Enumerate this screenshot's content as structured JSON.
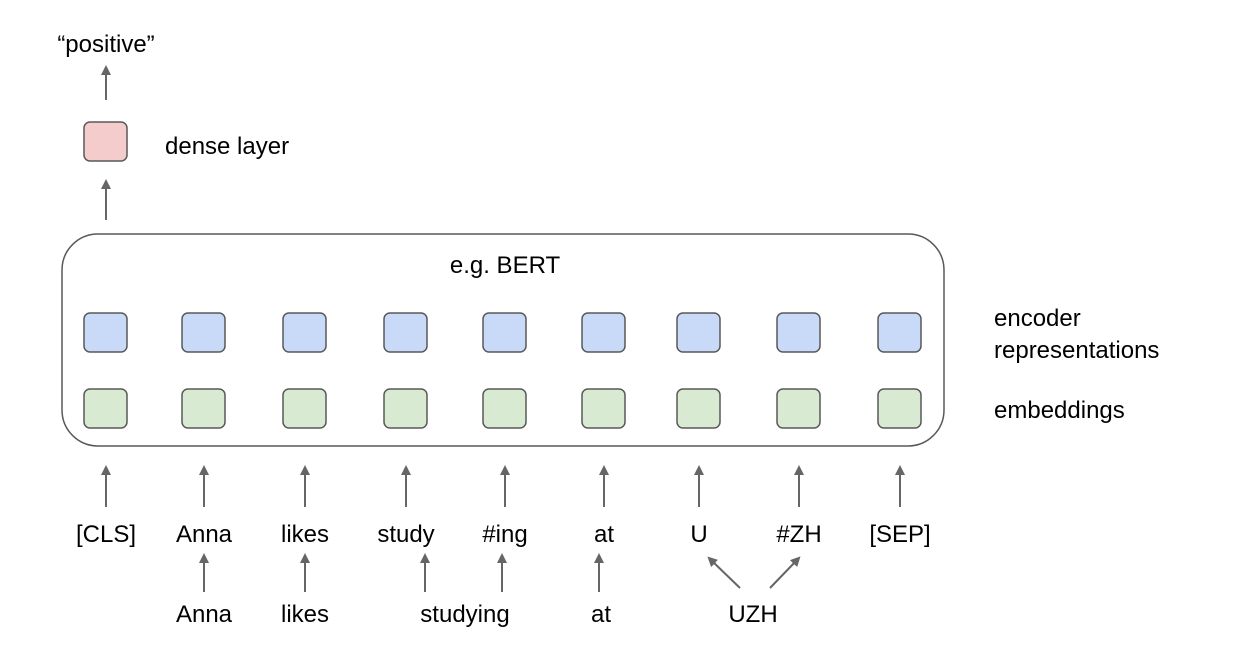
{
  "output_label": "“positive”",
  "dense_layer_label": "dense layer",
  "model_label": "e.g. BERT",
  "encoder_label_line1": "encoder",
  "encoder_label_line2": "representations",
  "embeddings_label": "embeddings",
  "tokens": [
    "[CLS]",
    "Anna",
    "likes",
    "study",
    "#ing",
    "at",
    "U",
    "#ZH",
    "[SEP]"
  ],
  "words": [
    "Anna",
    "likes",
    "studying",
    "at",
    "UZH"
  ],
  "colors": {
    "dense": "#f4cccc",
    "encoder": "#c9daf8",
    "embedding": "#d9ead3",
    "arrow": "#666666",
    "border": "#595959"
  }
}
